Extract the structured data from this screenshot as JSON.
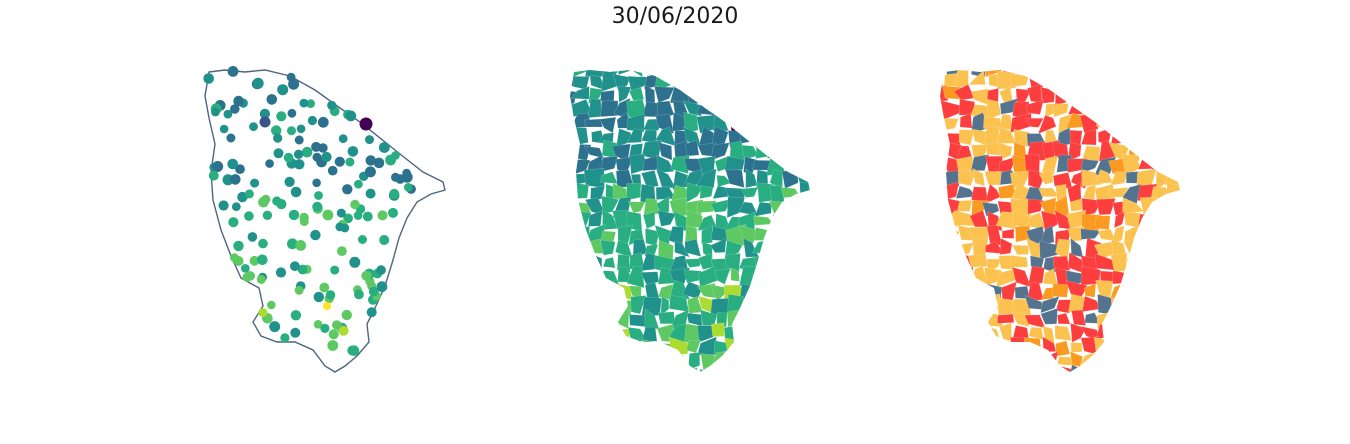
{
  "figure": {
    "title": "30/06/2020",
    "colors": {
      "outline": "#4f6580",
      "viridis": [
        "#440154",
        "#3b528b",
        "#2c728e",
        "#21918c",
        "#28ae80",
        "#5ec962",
        "#addc30",
        "#fde725"
      ],
      "categories": [
        "#fc3e3f",
        "#fbc250",
        "#fb9a21",
        "#54738f"
      ]
    }
  }
}
